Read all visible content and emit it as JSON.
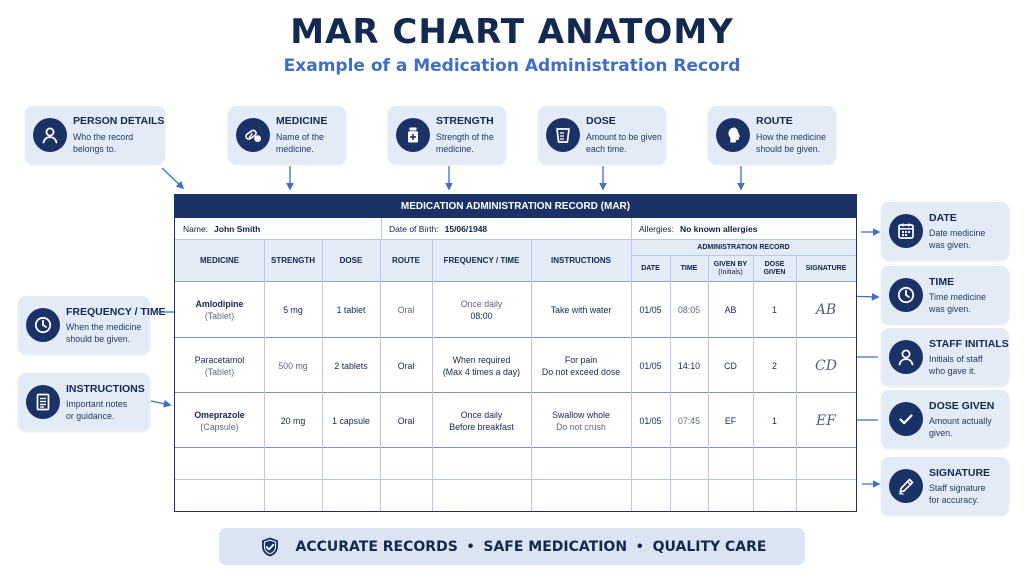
{
  "title": "MAR CHART ANATOMY",
  "subtitle": "Example of a Medication Administration Record",
  "callouts": {
    "person": {
      "title": "PERSON DETAILS",
      "desc1": "Who the record",
      "desc2": "belongs to."
    },
    "medicine": {
      "title": "MEDICINE",
      "desc1": "Name of the",
      "desc2": "medicine."
    },
    "strength": {
      "title": "STRENGTH",
      "desc1": "Strength of the",
      "desc2": "medicine."
    },
    "dose": {
      "title": "DOSE",
      "desc1": "Amount to be given",
      "desc2": "each time."
    },
    "route": {
      "title": "ROUTE",
      "desc1": "How the medicine",
      "desc2": "should be given."
    },
    "frequency": {
      "title": "FREQUENCY / TIME",
      "desc1": "When the medicine",
      "desc2": "should be given."
    },
    "instructions": {
      "title": "INSTRUCTIONS",
      "desc1": "Important notes",
      "desc2": "or guidance."
    },
    "date": {
      "title": "DATE",
      "desc1": "Date medicine",
      "desc2": "was given."
    },
    "time": {
      "title": "TIME",
      "desc1": "Time medicine",
      "desc2": "was given."
    },
    "initials": {
      "title": "STAFF INITIALS",
      "desc1": "Initials of staff",
      "desc2": "who gave it."
    },
    "dose_given": {
      "title": "DOSE GIVEN",
      "desc1": "Amount actually",
      "desc2": "given."
    },
    "signature": {
      "title": "SIGNATURE",
      "desc1": "Staff signature",
      "desc2": "for accuracy."
    }
  },
  "mar": {
    "title": "MEDICATION ADMINISTRATION RECORD (MAR)",
    "name_label": "Name:",
    "name_value": "John Smith",
    "dob_label": "Date of Birth:",
    "dob_value": "15/06/1948",
    "allergies_label": "Allergies:",
    "allergies_value": "No known allergies",
    "headers": {
      "medicine": "MEDICINE",
      "strength": "STRENGTH",
      "dose": "DOSE",
      "route": "ROUTE",
      "frequency": "FREQUENCY / TIME",
      "instructions": "INSTRUCTIONS",
      "admin": "ADMINISTRATION RECORD",
      "date": "DATE",
      "time": "TIME",
      "given_by1": "GIVEN BY",
      "given_by2": "(Initials)",
      "dose_given1": "DOSE",
      "dose_given2": "GIVEN",
      "signature": "SIGNATURE"
    },
    "rows": [
      {
        "medicine": "Amlodipine",
        "form": "(Tablet)",
        "strength": "5 mg",
        "dose": "1 tablet",
        "route": "Oral",
        "freq1": "Once daily",
        "freq2": "08:00",
        "instr1": "Take with water",
        "instr2": "",
        "date": "01/05",
        "time": "08:05",
        "initials": "AB",
        "dose_given": "1",
        "signature": "AB"
      },
      {
        "medicine": "Paracetamol",
        "form": "(Tablet)",
        "strength": "500 mg",
        "dose": "2 tablets",
        "route": "Oral",
        "freq1": "When required",
        "freq2": "(Max 4 times a day)",
        "instr1": "For pain",
        "instr2": "Do not exceed dose",
        "date": "01/05",
        "time": "14:10",
        "initials": "CD",
        "dose_given": "2",
        "signature": "CD"
      },
      {
        "medicine": "Omeprazole",
        "form": "(Capsule)",
        "strength": "20 mg",
        "dose": "1 capsule",
        "route": "Oral",
        "freq1": "Once daily",
        "freq2": "Before breakfast",
        "instr1": "Swallow whole",
        "instr2": "Do not crush",
        "date": "01/05",
        "time": "07:45",
        "initials": "EF",
        "dose_given": "1",
        "signature": "EF"
      }
    ]
  },
  "footer": {
    "item1": "ACCURATE RECORDS",
    "sep": "•",
    "item2": "SAFE MEDICATION",
    "item3": "QUALITY CARE"
  },
  "icons": {
    "person": "person-icon",
    "medicine": "pills-icon",
    "strength": "bottle-icon",
    "dose": "cup-icon",
    "route": "head-icon",
    "frequency": "clock-icon",
    "instructions": "document-icon",
    "date": "calendar-icon",
    "time": "clock-icon",
    "initials": "person-icon",
    "dose_given": "check-icon",
    "signature": "pen-icon",
    "footer": "shield-check-icon"
  },
  "colors": {
    "navy": "#1b3266",
    "accent": "#3f6fc2",
    "callout_bg": "#e3ebf7"
  }
}
